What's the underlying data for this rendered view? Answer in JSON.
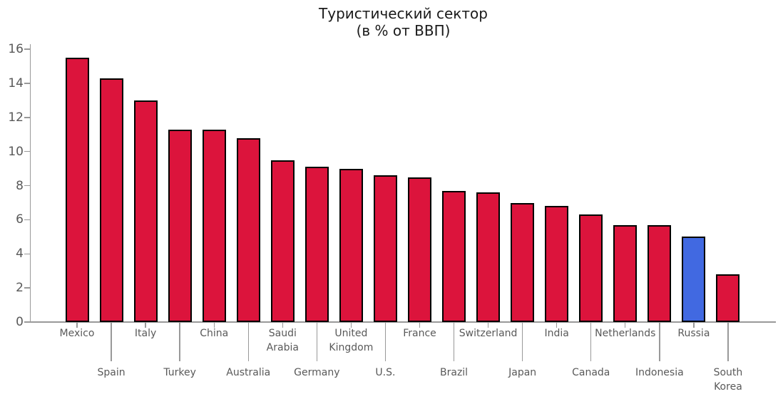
{
  "chart_data": {
    "type": "bar",
    "title": "Туристический сектор",
    "subtitle": "(в % от ВВП)",
    "xlabel": "",
    "ylabel": "",
    "categories": [
      "Mexico",
      "Spain",
      "Italy",
      "Turkey",
      "China",
      "Australia",
      "Saudi Arabia",
      "Germany",
      "United Kingdom",
      "U.S.",
      "France",
      "Brazil",
      "Switzerland",
      "Japan",
      "India",
      "Canada",
      "Netherlands",
      "Indonesia",
      "Russia",
      "South Korea"
    ],
    "category_display": [
      [
        "Mexico"
      ],
      [
        "Spain"
      ],
      [
        "Italy"
      ],
      [
        "Turkey"
      ],
      [
        "China"
      ],
      [
        "Australia"
      ],
      [
        "Saudi",
        "Arabia"
      ],
      [
        "Germany"
      ],
      [
        "United",
        "Kingdom"
      ],
      [
        "U.S."
      ],
      [
        "France"
      ],
      [
        "Brazil"
      ],
      [
        "Switzerland"
      ],
      [
        "Japan"
      ],
      [
        "India"
      ],
      [
        "Canada"
      ],
      [
        "Netherlands"
      ],
      [
        "Indonesia"
      ],
      [
        "Russia"
      ],
      [
        "South",
        "Korea"
      ]
    ],
    "values": [
      15.5,
      14.3,
      13.0,
      11.3,
      11.3,
      10.8,
      9.5,
      9.1,
      9.0,
      8.6,
      8.5,
      7.7,
      7.6,
      7.0,
      6.8,
      6.3,
      5.7,
      5.7,
      5.0,
      2.8
    ],
    "yticks": [
      0,
      2,
      4,
      6,
      8,
      10,
      12,
      14,
      16
    ],
    "ylim": [
      0,
      16.3
    ],
    "grid": false,
    "legend": null,
    "default_bar_color": "#DC143C",
    "highlight": {
      "category": "Russia",
      "index": 18,
      "color": "#4169E1"
    },
    "bar_edge_color": "#000000",
    "axis_color": "#999999",
    "tick_label_color": "#595959",
    "title_color": "#1a1a1a"
  }
}
